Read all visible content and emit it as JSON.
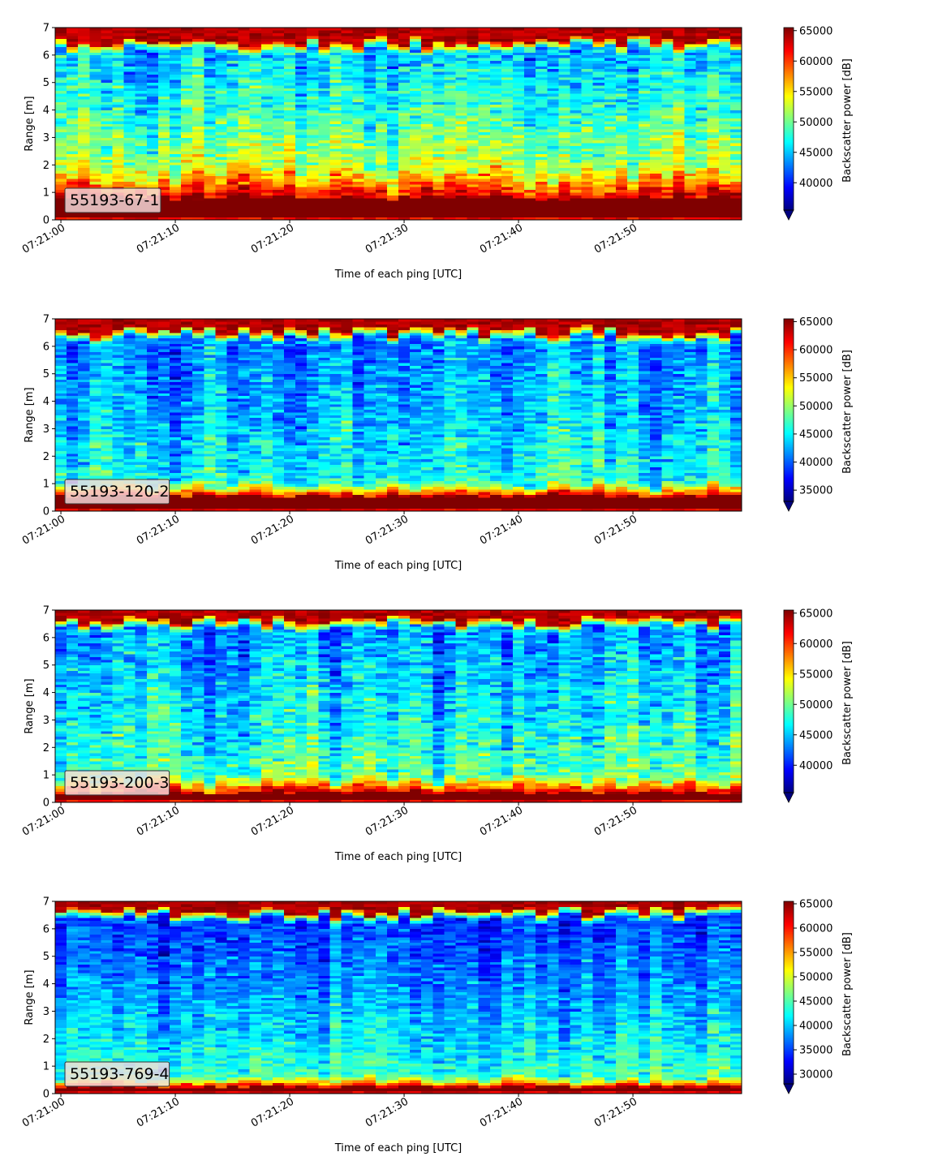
{
  "chart_data": [
    {
      "type": "heatmap",
      "label_box": "55193-67-1",
      "xlabel": "Time of each ping [UTC]",
      "ylabel": "Range [m]",
      "x_ticks": [
        "07:21:00",
        "07:21:10",
        "07:21:20",
        "07:21:30",
        "07:21:40",
        "07:21:50"
      ],
      "xlim": [
        "07:20:59.5",
        "07:21:59.5"
      ],
      "y_ticks": [
        0,
        1,
        2,
        3,
        4,
        5,
        6,
        7
      ],
      "ylim": [
        0,
        7
      ],
      "colorbar": {
        "label": "Backscatter power [dB]",
        "ticks": [
          40000,
          45000,
          50000,
          55000,
          60000,
          65000
        ],
        "vmin": 35500,
        "vmax": 65500,
        "extend": "min",
        "colormap": "jet"
      },
      "profile": {
        "surface_range_m": 0.8,
        "bottom_range_m": 6.4,
        "near_level": 56000,
        "far_level": 44500,
        "surface_tail_m": 1.1
      }
    },
    {
      "type": "heatmap",
      "label_box": "55193-120-2",
      "xlabel": "Time of each ping [UTC]",
      "ylabel": "Range [m]",
      "x_ticks": [
        "07:21:00",
        "07:21:10",
        "07:21:20",
        "07:21:30",
        "07:21:40",
        "07:21:50"
      ],
      "xlim": [
        "07:20:59.5",
        "07:21:59.5"
      ],
      "y_ticks": [
        0,
        1,
        2,
        3,
        4,
        5,
        6,
        7
      ],
      "ylim": [
        0,
        7
      ],
      "colorbar": {
        "label": "Backscatter power [dB]",
        "ticks": [
          35000,
          40000,
          45000,
          50000,
          55000,
          60000,
          65000
        ],
        "vmin": 33000,
        "vmax": 65500,
        "extend": "min",
        "colormap": "jet"
      },
      "profile": {
        "surface_range_m": 0.55,
        "bottom_range_m": 6.45,
        "near_level": 47000,
        "far_level": 41000,
        "surface_tail_m": 0.5
      }
    },
    {
      "type": "heatmap",
      "label_box": "55193-200-3",
      "xlabel": "Time of each ping [UTC]",
      "ylabel": "Range [m]",
      "x_ticks": [
        "07:21:00",
        "07:21:10",
        "07:21:20",
        "07:21:30",
        "07:21:40",
        "07:21:50"
      ],
      "xlim": [
        "07:20:59.5",
        "07:21:59.5"
      ],
      "y_ticks": [
        0,
        1,
        2,
        3,
        4,
        5,
        6,
        7
      ],
      "ylim": [
        0,
        7
      ],
      "colorbar": {
        "label": "Backscatter power [dB]",
        "ticks": [
          40000,
          45000,
          50000,
          55000,
          60000,
          65000
        ],
        "vmin": 35500,
        "vmax": 65500,
        "extend": "min",
        "colormap": "jet"
      },
      "profile": {
        "surface_range_m": 0.35,
        "bottom_range_m": 6.5,
        "near_level": 50500,
        "far_level": 43000,
        "surface_tail_m": 0.6
      }
    },
    {
      "type": "heatmap",
      "label_box": "55193-769-4",
      "xlabel": "Time of each ping [UTC]",
      "ylabel": "Range [m]",
      "x_ticks": [
        "07:21:00",
        "07:21:10",
        "07:21:20",
        "07:21:30",
        "07:21:40",
        "07:21:50"
      ],
      "xlim": [
        "07:20:59.5",
        "07:21:59.5"
      ],
      "y_ticks": [
        0,
        1,
        2,
        3,
        4,
        5,
        6,
        7
      ],
      "ylim": [
        0,
        7
      ],
      "colorbar": {
        "label": "Backscatter power [dB]",
        "ticks": [
          30000,
          35000,
          40000,
          45000,
          50000,
          55000,
          60000,
          65000
        ],
        "vmin": 28000,
        "vmax": 65500,
        "extend": "min",
        "colormap": "jet"
      },
      "profile": {
        "surface_range_m": 0.25,
        "bottom_range_m": 6.55,
        "near_level": 46000,
        "far_level": 34500,
        "surface_tail_m": 0.35
      }
    }
  ]
}
